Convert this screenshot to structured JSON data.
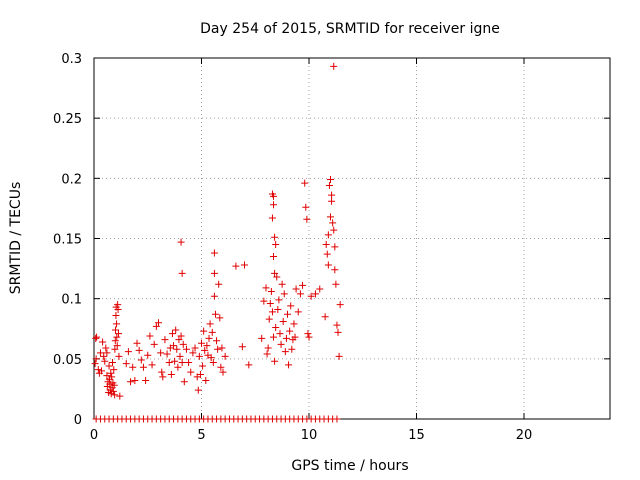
{
  "chart_data": {
    "type": "scatter",
    "title": "Day 254 of 2015, SRMTID for receiver igne",
    "xlabel": "GPS time / hours",
    "ylabel": "SRMTID / TECUs",
    "xlim": [
      0,
      24
    ],
    "ylim": [
      0,
      0.3
    ],
    "xticks": [
      0,
      5,
      10,
      15,
      20
    ],
    "xtick_labels": [
      "0",
      "5",
      "10",
      "15",
      "20"
    ],
    "yticks": [
      0,
      0.05,
      0.1,
      0.15,
      0.2,
      0.25,
      0.3
    ],
    "ytick_labels": [
      "0",
      "0.05",
      "0.1",
      "0.15",
      "0.2",
      "0.25",
      "0.3"
    ],
    "grid": true,
    "legend": "none",
    "marker": "+",
    "color": "#e00000",
    "series": [
      {
        "points": [
          [
            0.05,
            0.046
          ],
          [
            0.08,
            0.067
          ],
          [
            0.1,
            0.05
          ],
          [
            0.12,
            0.068
          ],
          [
            0.2,
            0.041
          ],
          [
            0.25,
            0.038
          ],
          [
            0.3,
            0.055
          ],
          [
            0.35,
            0.04
          ],
          [
            0.4,
            0.064
          ],
          [
            0.45,
            0.052
          ],
          [
            0.5,
            0.048
          ],
          [
            0.55,
            0.059
          ],
          [
            0.6,
            0.055
          ],
          [
            0.6,
            0.036
          ],
          [
            0.62,
            0.027
          ],
          [
            0.65,
            0.031
          ],
          [
            0.68,
            0.022
          ],
          [
            0.7,
            0.044
          ],
          [
            0.72,
            0.033
          ],
          [
            0.74,
            0.029
          ],
          [
            0.76,
            0.024
          ],
          [
            0.78,
            0.038
          ],
          [
            0.8,
            0.021
          ],
          [
            0.82,
            0.035
          ],
          [
            0.84,
            0.026
          ],
          [
            0.86,
            0.047
          ],
          [
            0.88,
            0.03
          ],
          [
            0.9,
            0.023
          ],
          [
            0.92,
            0.041
          ],
          [
            0.94,
            0.028
          ],
          [
            0.96,
            0.02
          ],
          [
            0.97,
            0.058
          ],
          [
            0.99,
            0.065
          ],
          [
            1.0,
            0.074
          ],
          [
            1.02,
            0.086
          ],
          [
            1.03,
            0.093
          ],
          [
            1.05,
            0.079
          ],
          [
            1.06,
            0.068
          ],
          [
            1.08,
            0.061
          ],
          [
            1.1,
            0.095
          ],
          [
            1.12,
            0.091
          ],
          [
            1.14,
            0.071
          ],
          [
            1.16,
            0.052
          ],
          [
            1.2,
            0.019
          ],
          [
            1.5,
            0.046
          ],
          [
            1.6,
            0.056
          ],
          [
            1.7,
            0.031
          ],
          [
            1.8,
            0.043
          ],
          [
            1.9,
            0.032
          ],
          [
            2.0,
            0.063
          ],
          [
            2.1,
            0.057
          ],
          [
            2.2,
            0.049
          ],
          [
            2.3,
            0.043
          ],
          [
            2.4,
            0.032
          ],
          [
            2.5,
            0.053
          ],
          [
            2.6,
            0.069
          ],
          [
            2.7,
            0.045
          ],
          [
            2.8,
            0.062
          ],
          [
            2.9,
            0.077
          ],
          [
            3.0,
            0.08
          ],
          [
            3.1,
            0.055
          ],
          [
            3.15,
            0.039
          ],
          [
            3.2,
            0.035
          ],
          [
            3.3,
            0.066
          ],
          [
            3.4,
            0.054
          ],
          [
            3.5,
            0.047
          ],
          [
            3.55,
            0.059
          ],
          [
            3.6,
            0.037
          ],
          [
            3.65,
            0.071
          ],
          [
            3.7,
            0.061
          ],
          [
            3.75,
            0.048
          ],
          [
            3.8,
            0.074
          ],
          [
            3.85,
            0.058
          ],
          [
            3.9,
            0.043
          ],
          [
            3.95,
            0.066
          ],
          [
            4.0,
            0.052
          ],
          [
            4.05,
            0.069
          ],
          [
            4.1,
            0.047
          ],
          [
            4.15,
            0.062
          ],
          [
            4.2,
            0.031
          ],
          [
            4.3,
            0.058
          ],
          [
            4.05,
            0.147
          ],
          [
            4.1,
            0.121
          ],
          [
            4.4,
            0.047
          ],
          [
            4.5,
            0.039
          ],
          [
            4.6,
            0.055
          ],
          [
            4.7,
            0.059
          ],
          [
            4.8,
            0.035
          ],
          [
            4.85,
            0.024
          ],
          [
            4.9,
            0.052
          ],
          [
            4.95,
            0.037
          ],
          [
            5.0,
            0.063
          ],
          [
            5.05,
            0.044
          ],
          [
            5.1,
            0.073
          ],
          [
            5.15,
            0.057
          ],
          [
            5.2,
            0.032
          ],
          [
            5.25,
            0.061
          ],
          [
            5.3,
            0.053
          ],
          [
            5.35,
            0.067
          ],
          [
            5.4,
            0.079
          ],
          [
            5.45,
            0.051
          ],
          [
            5.5,
            0.072
          ],
          [
            5.55,
            0.047
          ],
          [
            5.6,
            0.102
          ],
          [
            5.65,
            0.087
          ],
          [
            5.7,
            0.065
          ],
          [
            5.75,
            0.058
          ],
          [
            5.8,
            0.112
          ],
          [
            5.85,
            0.084
          ],
          [
            5.9,
            0.043
          ],
          [
            5.95,
            0.059
          ],
          [
            6.0,
            0.039
          ],
          [
            6.1,
            0.052
          ],
          [
            5.6,
            0.138
          ],
          [
            5.6,
            0.121
          ],
          [
            6.6,
            0.127
          ],
          [
            7.0,
            0.128
          ],
          [
            6.9,
            0.06
          ],
          [
            7.2,
            0.045
          ],
          [
            7.8,
            0.067
          ],
          [
            7.9,
            0.098
          ],
          [
            8.0,
            0.109
          ],
          [
            8.05,
            0.054
          ],
          [
            8.1,
            0.059
          ],
          [
            8.15,
            0.083
          ],
          [
            8.2,
            0.096
          ],
          [
            8.25,
            0.106
          ],
          [
            8.3,
            0.089
          ],
          [
            8.35,
            0.068
          ],
          [
            8.4,
            0.048
          ],
          [
            8.45,
            0.076
          ],
          [
            8.5,
            0.118
          ],
          [
            8.55,
            0.091
          ],
          [
            8.6,
            0.099
          ],
          [
            8.65,
            0.071
          ],
          [
            8.7,
            0.062
          ],
          [
            8.75,
            0.112
          ],
          [
            8.8,
            0.081
          ],
          [
            8.85,
            0.104
          ],
          [
            8.9,
            0.056
          ],
          [
            8.95,
            0.067
          ],
          [
            9.0,
            0.087
          ],
          [
            9.05,
            0.045
          ],
          [
            9.1,
            0.073
          ],
          [
            9.15,
            0.094
          ],
          [
            9.2,
            0.058
          ],
          [
            9.25,
            0.066
          ],
          [
            9.3,
            0.079
          ],
          [
            9.35,
            0.068
          ],
          [
            9.4,
            0.108
          ],
          [
            9.5,
            0.089
          ],
          [
            9.6,
            0.104
          ],
          [
            9.7,
            0.111
          ],
          [
            8.3,
            0.187
          ],
          [
            8.35,
            0.178
          ],
          [
            8.3,
            0.167
          ],
          [
            8.4,
            0.151
          ],
          [
            8.35,
            0.135
          ],
          [
            8.4,
            0.121
          ],
          [
            8.35,
            0.185
          ],
          [
            8.45,
            0.145
          ],
          [
            9.8,
            0.196
          ],
          [
            9.85,
            0.176
          ],
          [
            9.9,
            0.166
          ],
          [
            9.95,
            0.071
          ],
          [
            10.0,
            0.068
          ],
          [
            10.1,
            0.102
          ],
          [
            10.3,
            0.104
          ],
          [
            10.5,
            0.108
          ],
          [
            10.75,
            0.085
          ],
          [
            10.8,
            0.145
          ],
          [
            10.85,
            0.137
          ],
          [
            10.9,
            0.128
          ],
          [
            10.95,
            0.194
          ],
          [
            11.0,
            0.199
          ],
          [
            11.05,
            0.186
          ],
          [
            11.1,
            0.163
          ],
          [
            11.15,
            0.157
          ],
          [
            11.2,
            0.143
          ],
          [
            11.25,
            0.112
          ],
          [
            11.3,
            0.078
          ],
          [
            11.35,
            0.072
          ],
          [
            11.4,
            0.052
          ],
          [
            11.45,
            0.095
          ],
          [
            10.9,
            0.153
          ],
          [
            11.0,
            0.168
          ],
          [
            11.05,
            0.181
          ],
          [
            11.2,
            0.124
          ],
          [
            11.15,
            0.293
          ],
          [
            0.1,
            0
          ],
          [
            0.3,
            0
          ],
          [
            0.5,
            0
          ],
          [
            0.7,
            0
          ],
          [
            0.9,
            0
          ],
          [
            1.1,
            0
          ],
          [
            1.3,
            0
          ],
          [
            1.5,
            0
          ],
          [
            1.7,
            0
          ],
          [
            1.9,
            0
          ],
          [
            2.1,
            0
          ],
          [
            2.3,
            0
          ],
          [
            2.5,
            0
          ],
          [
            2.7,
            0
          ],
          [
            2.9,
            0
          ],
          [
            3.1,
            0
          ],
          [
            3.3,
            0
          ],
          [
            3.5,
            0
          ],
          [
            3.7,
            0
          ],
          [
            3.9,
            0
          ],
          [
            4.1,
            0
          ],
          [
            4.3,
            0
          ],
          [
            4.5,
            0
          ],
          [
            4.7,
            0
          ],
          [
            4.9,
            0
          ],
          [
            5.1,
            0
          ],
          [
            5.3,
            0
          ],
          [
            5.5,
            0
          ],
          [
            5.7,
            0
          ],
          [
            5.9,
            0
          ],
          [
            6.1,
            0
          ],
          [
            6.3,
            0
          ],
          [
            6.5,
            0
          ],
          [
            6.7,
            0
          ],
          [
            6.9,
            0
          ],
          [
            7.1,
            0
          ],
          [
            7.3,
            0
          ],
          [
            7.5,
            0
          ],
          [
            7.7,
            0
          ],
          [
            7.9,
            0
          ],
          [
            8.1,
            0
          ],
          [
            8.3,
            0
          ],
          [
            8.5,
            0
          ],
          [
            8.7,
            0
          ],
          [
            8.9,
            0
          ],
          [
            9.1,
            0
          ],
          [
            9.3,
            0
          ],
          [
            9.5,
            0
          ],
          [
            9.7,
            0
          ],
          [
            9.9,
            0
          ],
          [
            10.1,
            0
          ],
          [
            10.3,
            0
          ],
          [
            10.5,
            0
          ],
          [
            10.7,
            0
          ],
          [
            10.9,
            0
          ],
          [
            11.1,
            0
          ],
          [
            11.3,
            0
          ]
        ]
      }
    ]
  }
}
